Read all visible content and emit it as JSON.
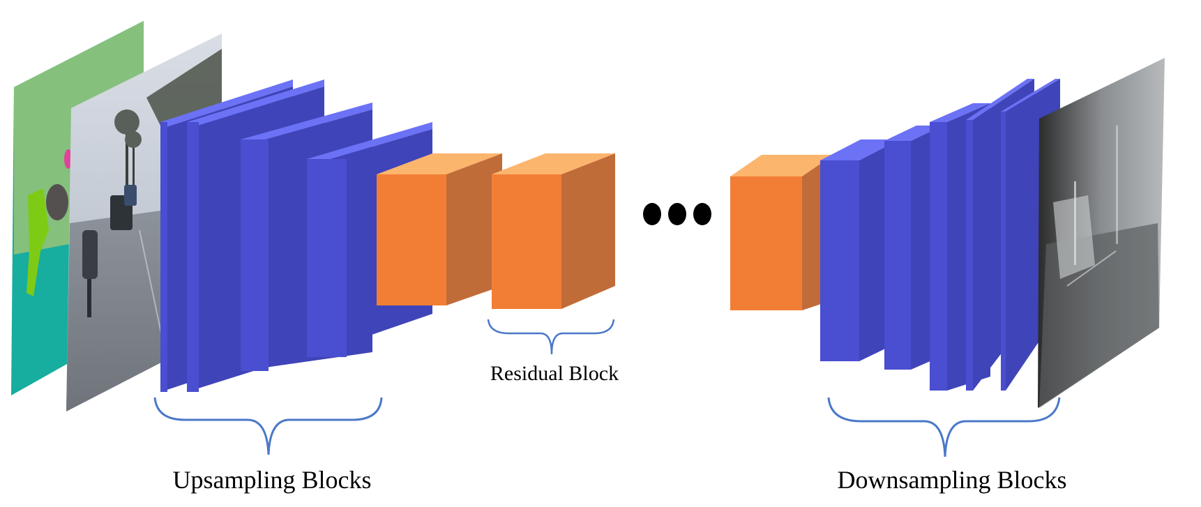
{
  "labels": {
    "upsampling": "Upsampling Blocks",
    "residual": "Residual Block",
    "downsampling": "Downsampling Blocks"
  },
  "colors": {
    "block_front": "#4a4ed0",
    "block_top": "#6b72f5",
    "block_side": "#3f44b8",
    "residual_front": "#f27e36",
    "residual_top": "#fcb56c",
    "residual_side": "#c06c39",
    "brace": "#4a78c8",
    "ellipsis": "#000000"
  },
  "panels": {
    "segmentation_map": "segmentation-map-image",
    "street_photo": "street-scene-photo",
    "output_map": "grayscale-output-image"
  }
}
